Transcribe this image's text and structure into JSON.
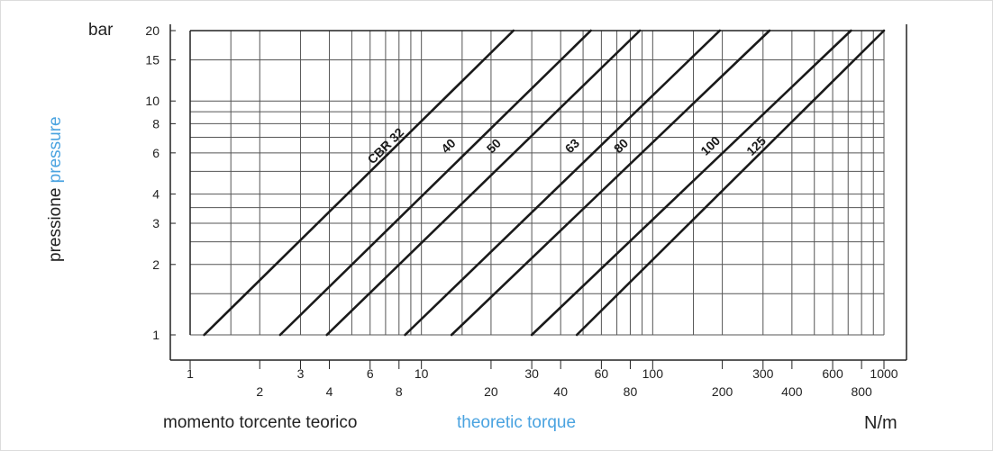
{
  "chart_data": {
    "type": "line",
    "x_scale": "log",
    "y_scale": "log",
    "xlim": [
      1,
      1000
    ],
    "ylim": [
      1,
      20
    ],
    "grid": true,
    "ylabel_unit": "bar",
    "ylabel_it": "pressione",
    "ylabel_en": "pressure",
    "xlabel_it": "momento torcente teorico",
    "xlabel_en": "theoretic torque",
    "xlabel_unit": "N/m",
    "y_ticks": [
      1,
      2,
      3,
      4,
      6,
      8,
      10,
      15,
      20
    ],
    "x_ticks_upper": [
      1,
      3,
      6,
      10,
      30,
      60,
      100,
      300,
      600,
      1000
    ],
    "x_ticks_lower": [
      2,
      4,
      8,
      20,
      40,
      80,
      200,
      400,
      800
    ],
    "series": [
      {
        "name": "CBR 32",
        "x": [
          1.15,
          25
        ],
        "y": [
          1,
          20
        ],
        "label_at": [
          7.5,
          6
        ]
      },
      {
        "name": "40",
        "x": [
          2.45,
          54
        ],
        "y": [
          1,
          20
        ],
        "label_at": [
          14,
          6
        ]
      },
      {
        "name": "50",
        "x": [
          3.9,
          88
        ],
        "y": [
          1,
          20
        ],
        "label_at": [
          22,
          6
        ]
      },
      {
        "name": "63",
        "x": [
          8.5,
          195
        ],
        "y": [
          1,
          20
        ],
        "label_at": [
          48,
          6
        ]
      },
      {
        "name": "80",
        "x": [
          13.5,
          320
        ],
        "y": [
          1,
          20
        ],
        "label_at": [
          78,
          6
        ]
      },
      {
        "name": "100",
        "x": [
          30,
          720
        ],
        "y": [
          1,
          20
        ],
        "label_at": [
          190,
          6
        ]
      },
      {
        "name": "125",
        "x": [
          47,
          1050
        ],
        "y": [
          1,
          20
        ],
        "label_at": [
          300,
          6
        ]
      }
    ]
  }
}
